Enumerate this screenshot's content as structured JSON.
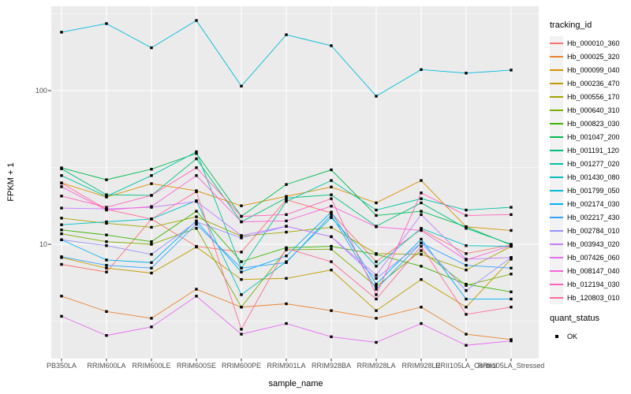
{
  "chart_data": {
    "type": "line",
    "title": "",
    "xlabel": "sample_name",
    "ylabel": "FPKM + 1",
    "y_scale": "log10",
    "ylim": [
      1.8,
      350
    ],
    "y_ticks": [
      10,
      100
    ],
    "y_minor_ticks": [
      3.1623,
      31.623,
      316.23
    ],
    "grid": "on",
    "legend_position": "right",
    "marker": "black-square",
    "categories": [
      "PB350LA",
      "RRIM600LA",
      "RRIM600LE",
      "RRIM600SE",
      "RRIM600PE",
      "RRIM901LA",
      "RRIM928BA",
      "RRIM928LA",
      "RRIM928LE",
      "RRII105LA_Control",
      "RRII105LA_Stressed"
    ],
    "series": [
      {
        "name": "Hb_000010_360",
        "color": "#F8766D",
        "values": [
          7.4,
          6.6,
          14.6,
          9.7,
          8.9,
          19.5,
          16.0,
          7.7,
          12.5,
          8.7,
          9.9
        ]
      },
      {
        "name": "Hb_000025_320",
        "color": "#EA8331",
        "values": [
          4.6,
          3.65,
          3.3,
          5.1,
          3.9,
          4.1,
          3.7,
          3.3,
          3.9,
          2.6,
          2.4
        ]
      },
      {
        "name": "Hb_000099_040",
        "color": "#D89000",
        "values": [
          25.1,
          20.3,
          24.8,
          22.3,
          17.8,
          20.5,
          23.6,
          18.6,
          26.0,
          13.0,
          12.3
        ]
      },
      {
        "name": "Hb_000236_470",
        "color": "#C09B00",
        "values": [
          8.2,
          7.0,
          6.5,
          9.6,
          5.9,
          6.0,
          6.8,
          3.7,
          5.9,
          3.9,
          8.0
        ]
      },
      {
        "name": "Hb_000556_170",
        "color": "#A3A500",
        "values": [
          14.8,
          13.7,
          12.9,
          15.1,
          11.3,
          12.0,
          12.9,
          8.7,
          8.6,
          6.8,
          9.7
        ]
      },
      {
        "name": "Hb_000640_310",
        "color": "#7CAE00",
        "values": [
          11.7,
          10.4,
          10.0,
          12.7,
          3.9,
          9.2,
          9.3,
          5.3,
          9.1,
          5.4,
          6.4
        ]
      },
      {
        "name": "Hb_000823_030",
        "color": "#39B600",
        "values": [
          12.4,
          11.5,
          10.4,
          16.4,
          7.7,
          9.5,
          9.7,
          8.6,
          7.2,
          5.5,
          4.9
        ]
      },
      {
        "name": "Hb_001047_200",
        "color": "#00BB4E",
        "values": [
          31.4,
          26.3,
          30.8,
          39.0,
          15.2,
          24.5,
          30.5,
          15.4,
          16.4,
          13.0,
          9.9
        ]
      },
      {
        "name": "Hb_001191_120",
        "color": "#00BF7D",
        "values": [
          31.0,
          21.0,
          20.8,
          36.0,
          14.0,
          20.0,
          21.0,
          13.1,
          18.6,
          12.7,
          10.0
        ]
      },
      {
        "name": "Hb_001277_020",
        "color": "#00C1A3",
        "values": [
          28.0,
          20.5,
          28.0,
          40.0,
          7.0,
          19.0,
          26.0,
          16.7,
          19.8,
          16.7,
          17.4
        ]
      },
      {
        "name": "Hb_001430_080",
        "color": "#00BFC4",
        "values": [
          13.4,
          14.0,
          14.6,
          19.2,
          4.7,
          7.7,
          14.9,
          7.2,
          12.7,
          9.8,
          9.7
        ]
      },
      {
        "name": "Hb_001799_050",
        "color": "#00BBDA",
        "values": [
          240,
          273,
          190,
          286,
          107,
          231,
          196,
          92,
          137,
          130,
          136
        ]
      },
      {
        "name": "Hb_002174_030",
        "color": "#00B0F6",
        "values": [
          10.7,
          7.9,
          7.6,
          14.2,
          6.6,
          8.4,
          16.2,
          5.5,
          10.8,
          4.4,
          4.4
        ]
      },
      {
        "name": "Hb_002217_430",
        "color": "#35A2FF",
        "values": [
          8.3,
          7.3,
          7.0,
          13.5,
          7.0,
          7.6,
          15.5,
          5.1,
          10.2,
          7.3,
          7.0
        ]
      },
      {
        "name": "Hb_002784_010",
        "color": "#9590FF",
        "values": [
          10.7,
          9.8,
          8.6,
          14.0,
          11.0,
          13.1,
          11.2,
          6.0,
          10.2,
          5.0,
          8.2
        ]
      },
      {
        "name": "Hb_003943_020",
        "color": "#C77CFF",
        "values": [
          17.2,
          17.0,
          17.4,
          19.0,
          11.4,
          13.1,
          11.2,
          6.3,
          15.6,
          8.0,
          8.2
        ]
      },
      {
        "name": "Hb_007426_060",
        "color": "#E76BF3",
        "values": [
          3.4,
          2.55,
          2.9,
          4.6,
          2.6,
          3.05,
          2.5,
          2.3,
          3.05,
          2.2,
          2.35
        ]
      },
      {
        "name": "Hb_008147_040",
        "color": "#FA62DB",
        "values": [
          23.7,
          16.7,
          17.6,
          28.0,
          14.0,
          14.2,
          17.7,
          13.0,
          12.3,
          7.9,
          9.8
        ]
      },
      {
        "name": "Hb_012194_030",
        "color": "#FF62BC",
        "values": [
          20.6,
          17.4,
          20.8,
          31.5,
          15.2,
          15.6,
          19.8,
          4.7,
          21.6,
          15.4,
          15.6
        ]
      },
      {
        "name": "Hb_120803_010",
        "color": "#FF6A98",
        "values": [
          25.0,
          16.9,
          14.6,
          22.0,
          2.8,
          9.4,
          7.7,
          4.4,
          9.7,
          3.5,
          3.9
        ]
      }
    ]
  },
  "legend": {
    "tracking_title": "tracking_id",
    "quant_title": "quant_status",
    "quant_items": [
      {
        "label": "OK",
        "marker": "black-square"
      }
    ]
  },
  "colors": {
    "panel_bg": "#EBEBEB",
    "grid": "#FFFFFF",
    "axis_text": "#4D4D4D",
    "tick_mark": "#333333",
    "text": "#000000",
    "legend_key_bg": "#F2F2F2",
    "point": "#000000"
  }
}
